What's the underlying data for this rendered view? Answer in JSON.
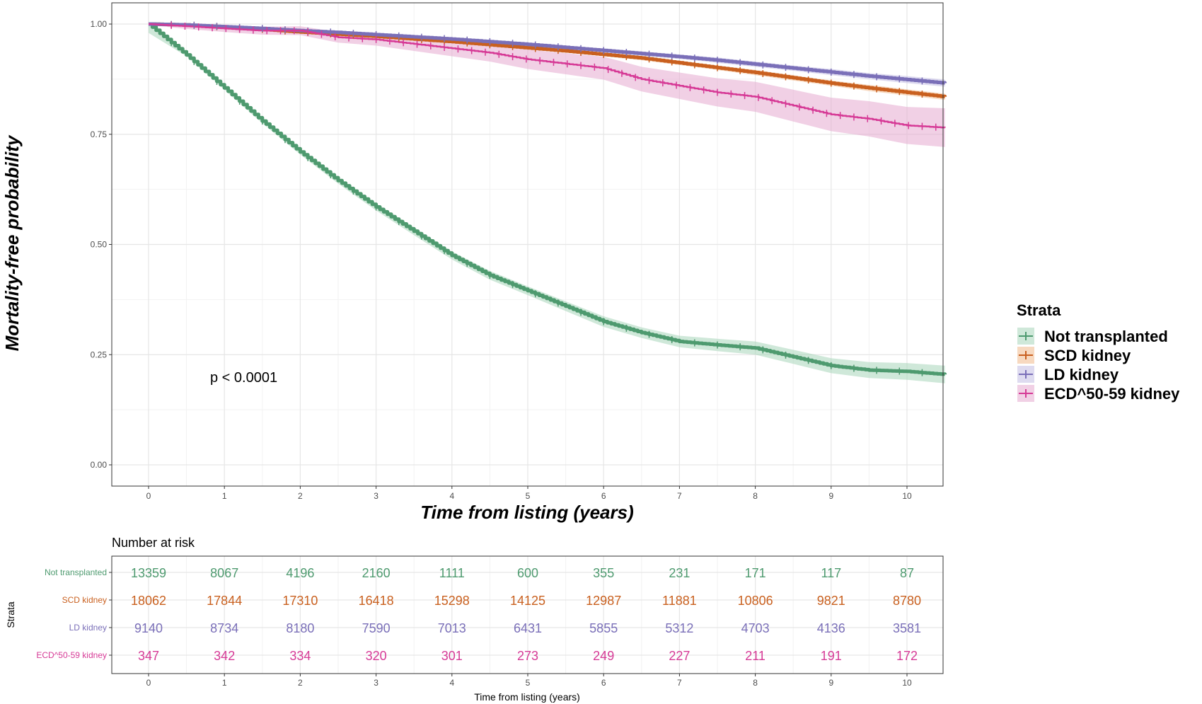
{
  "chart_data": {
    "type": "line",
    "xlabel": "Time from listing (years)",
    "ylabel": "Mortality-free probability",
    "xlim": [
      -0.5,
      10.5
    ],
    "ylim": [
      -0.045,
      1.05
    ],
    "xticks": [
      "0",
      "1",
      "2",
      "3",
      "4",
      "5",
      "6",
      "7",
      "8",
      "9",
      "10"
    ],
    "yticks": [
      "0.00",
      "0.25",
      "0.50",
      "0.75",
      "1.00"
    ],
    "grid": true,
    "annotation": "p < 0.0001",
    "legend": {
      "title": "Strata",
      "placement": "right",
      "entries": [
        "Not transplanted",
        "SCD kidney",
        "LD kidney",
        "ECD^50-59 kidney"
      ]
    },
    "series": [
      {
        "name": "Not transplanted",
        "color": "#4e9a6f",
        "band_color": "#a8d5b9",
        "x": [
          0,
          0.5,
          1,
          1.5,
          2,
          2.5,
          3,
          3.5,
          4,
          4.5,
          5,
          5.5,
          6,
          6.5,
          7,
          7.5,
          8,
          8.5,
          9,
          9.5,
          10,
          10.5
        ],
        "y": [
          1.0,
          0.93,
          0.855,
          0.78,
          0.71,
          0.645,
          0.585,
          0.53,
          0.475,
          0.43,
          0.395,
          0.36,
          0.325,
          0.3,
          0.28,
          0.272,
          0.265,
          0.245,
          0.225,
          0.215,
          0.212,
          0.205
        ],
        "band": [
          0.02,
          0.003,
          0.004,
          0.005,
          0.006,
          0.007,
          0.008,
          0.009,
          0.009,
          0.01,
          0.01,
          0.011,
          0.012,
          0.012,
          0.013,
          0.014,
          0.015,
          0.016,
          0.017,
          0.018,
          0.019,
          0.02
        ]
      },
      {
        "name": "SCD kidney",
        "color": "#c9601f",
        "band_color": "#f0b98d",
        "x": [
          0,
          0.5,
          1,
          1.5,
          2,
          2.5,
          3,
          3.5,
          4,
          4.5,
          5,
          5.5,
          6,
          6.5,
          7,
          7.5,
          8,
          8.5,
          9,
          9.5,
          10,
          10.5
        ],
        "y": [
          1.0,
          0.998,
          0.993,
          0.988,
          0.982,
          0.977,
          0.972,
          0.966,
          0.96,
          0.953,
          0.946,
          0.939,
          0.931,
          0.923,
          0.912,
          0.901,
          0.89,
          0.878,
          0.866,
          0.855,
          0.845,
          0.835
        ],
        "band": [
          0.001,
          0.001,
          0.002,
          0.002,
          0.002,
          0.002,
          0.003,
          0.003,
          0.003,
          0.003,
          0.004,
          0.004,
          0.004,
          0.005,
          0.005,
          0.005,
          0.006,
          0.006,
          0.006,
          0.007,
          0.007,
          0.007
        ]
      },
      {
        "name": "LD kidney",
        "color": "#7a6fb8",
        "band_color": "#c3bde3",
        "x": [
          0,
          0.5,
          1,
          1.5,
          2,
          2.5,
          3,
          3.5,
          4,
          4.5,
          5,
          5.5,
          6,
          6.5,
          7,
          7.5,
          8,
          8.5,
          9,
          9.5,
          10,
          10.5
        ],
        "y": [
          1.0,
          0.998,
          0.994,
          0.99,
          0.985,
          0.981,
          0.976,
          0.971,
          0.966,
          0.96,
          0.954,
          0.947,
          0.94,
          0.933,
          0.926,
          0.918,
          0.909,
          0.9,
          0.891,
          0.882,
          0.874,
          0.866
        ],
        "band": [
          0.001,
          0.001,
          0.002,
          0.002,
          0.002,
          0.003,
          0.003,
          0.003,
          0.003,
          0.004,
          0.004,
          0.004,
          0.005,
          0.005,
          0.005,
          0.006,
          0.006,
          0.006,
          0.007,
          0.007,
          0.008,
          0.008
        ]
      },
      {
        "name": "ECD^50-59 kidney",
        "color": "#d63a96",
        "band_color": "#e6a9d0",
        "x": [
          0,
          0.5,
          1,
          1.5,
          2,
          2.5,
          3,
          3.5,
          4,
          4.5,
          5,
          5.5,
          6,
          6.5,
          7,
          7.5,
          8,
          8.5,
          9,
          9.5,
          10,
          10.5
        ],
        "y": [
          1.0,
          0.995,
          0.99,
          0.985,
          0.985,
          0.97,
          0.965,
          0.955,
          0.945,
          0.935,
          0.92,
          0.91,
          0.9,
          0.875,
          0.86,
          0.845,
          0.835,
          0.815,
          0.795,
          0.785,
          0.77,
          0.765
        ],
        "band": [
          0.002,
          0.006,
          0.008,
          0.009,
          0.01,
          0.012,
          0.014,
          0.016,
          0.018,
          0.02,
          0.022,
          0.024,
          0.026,
          0.028,
          0.03,
          0.032,
          0.034,
          0.036,
          0.038,
          0.04,
          0.042,
          0.044
        ]
      }
    ],
    "risk_table": {
      "title": "Number at risk",
      "ytitle": "Strata",
      "xlabel": "Time from listing (years)",
      "times": [
        "0",
        "1",
        "2",
        "3",
        "4",
        "5",
        "6",
        "7",
        "8",
        "9",
        "10"
      ],
      "rows": [
        {
          "name": "Not transplanted",
          "color": "#4e9a6f",
          "values": [
            "13359",
            "8067",
            "4196",
            "2160",
            "1111",
            "600",
            "355",
            "231",
            "171",
            "117",
            "87"
          ]
        },
        {
          "name": "SCD kidney",
          "color": "#c9601f",
          "values": [
            "18062",
            "17844",
            "17310",
            "16418",
            "15298",
            "14125",
            "12987",
            "11881",
            "10806",
            "9821",
            "8780"
          ]
        },
        {
          "name": "LD kidney",
          "color": "#7a6fb8",
          "values": [
            "9140",
            "8734",
            "8180",
            "7590",
            "7013",
            "6431",
            "5855",
            "5312",
            "4703",
            "4136",
            "3581"
          ]
        },
        {
          "name": "ECD^50-59 kidney",
          "color": "#d63a96",
          "values": [
            "347",
            "342",
            "334",
            "320",
            "301",
            "273",
            "249",
            "227",
            "211",
            "191",
            "172"
          ]
        }
      ]
    }
  }
}
